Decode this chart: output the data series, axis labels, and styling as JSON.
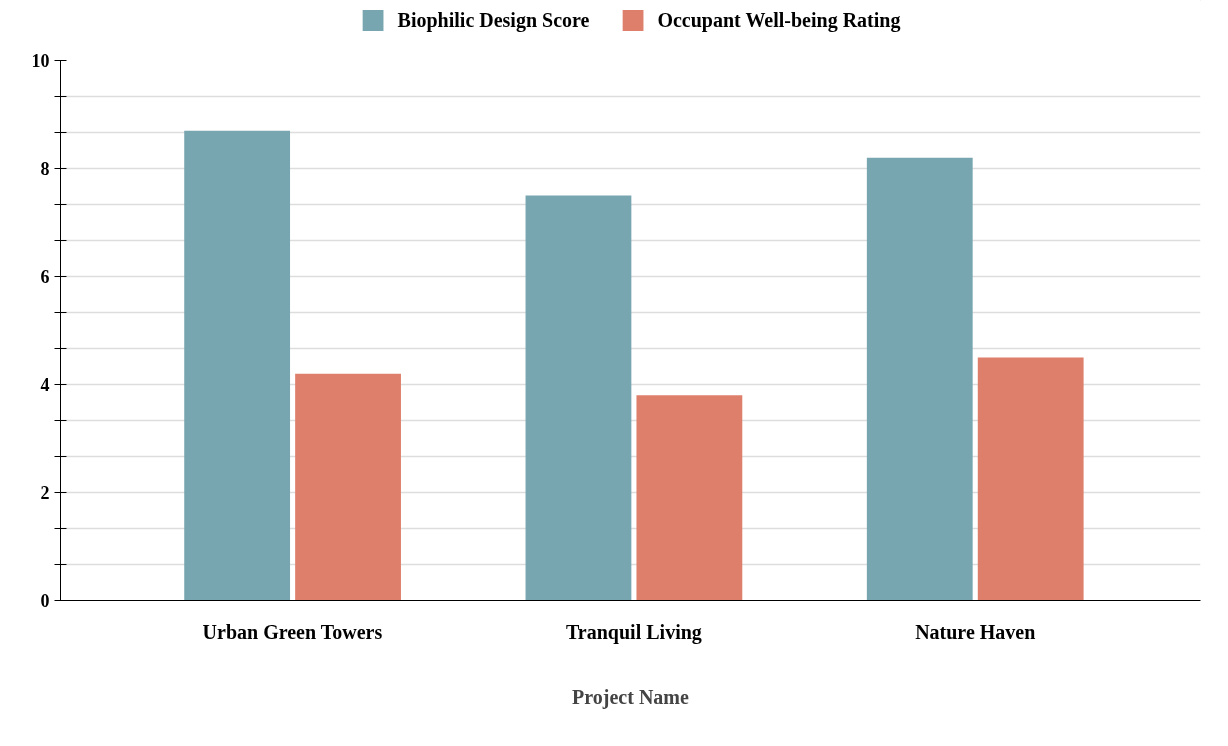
{
  "chart_data": {
    "type": "bar",
    "xlabel": "Project Name",
    "categories": [
      "Urban Green Towers",
      "Tranquil Living",
      "Nature Haven"
    ],
    "series": [
      {
        "name": "Biophilic Design Score",
        "color": "#77a5b0",
        "values": [
          8.7,
          7.5,
          8.2
        ]
      },
      {
        "name": "Occupant Well-being Rating",
        "color": "#de7f6b",
        "values": [
          4.2,
          3.8,
          4.5
        ]
      }
    ],
    "ylim": [
      0,
      10
    ],
    "yticks": [
      0,
      {
        "value": 0.667,
        "label": null
      },
      {
        "value": 1.333,
        "label": null
      },
      2,
      {
        "value": 2.667,
        "label": null
      },
      {
        "value": 3.333,
        "label": null
      },
      4,
      {
        "value": 4.667,
        "label": null
      },
      {
        "value": 5.333,
        "label": null
      },
      6,
      {
        "value": 6.667,
        "label": null
      },
      {
        "value": 7.333,
        "label": null
      },
      8,
      {
        "value": 8.667,
        "label": null
      },
      {
        "value": 9.333,
        "label": null
      },
      10
    ],
    "grid": "y",
    "legend": "top"
  }
}
